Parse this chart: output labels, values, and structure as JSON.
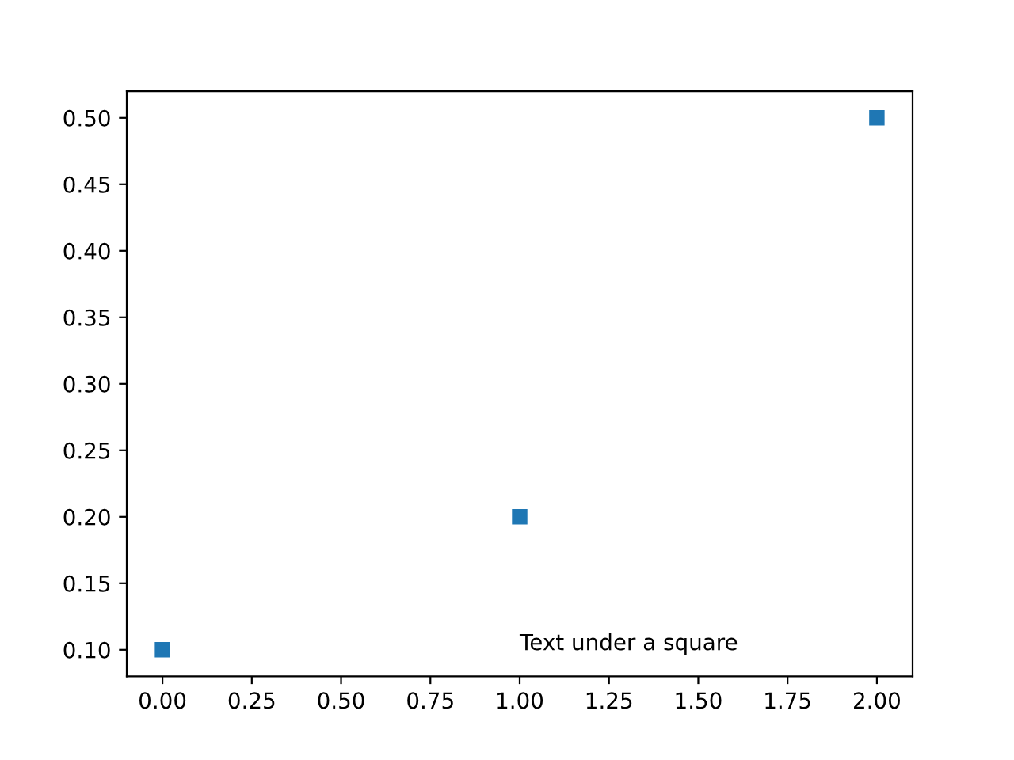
{
  "chart_data": {
    "type": "scatter",
    "marker": "square",
    "grid": false,
    "x": [
      0,
      1,
      2
    ],
    "series": [
      {
        "color": "#1f77b4",
        "values": [
          0.1,
          0.2,
          0.5
        ]
      }
    ],
    "xlim": [
      -0.1,
      2.1
    ],
    "ylim": [
      0.08,
      0.52
    ],
    "xticks": [
      {
        "value": 0,
        "label": "0.00"
      },
      {
        "value": 0.25,
        "label": "0.25"
      },
      {
        "value": 0.5,
        "label": "0.50"
      },
      {
        "value": 0.75,
        "label": "0.75"
      },
      {
        "value": 1,
        "label": "1.00"
      },
      {
        "value": 1.25,
        "label": "1.25"
      },
      {
        "value": 1.5,
        "label": "1.50"
      },
      {
        "value": 1.75,
        "label": "1.75"
      },
      {
        "value": 2,
        "label": "2.00"
      }
    ],
    "yticks": [
      {
        "value": 0.1,
        "label": "0.10"
      },
      0.15,
      {
        "value": 0.2,
        "label": "0.20"
      },
      0.25,
      {
        "value": 0.3,
        "label": "0.30"
      },
      0.35,
      {
        "value": 0.4,
        "label": "0.40"
      },
      0.45,
      {
        "value": 0.5,
        "label": "0.50"
      }
    ],
    "annotations": [
      "Text under a square"
    ]
  }
}
